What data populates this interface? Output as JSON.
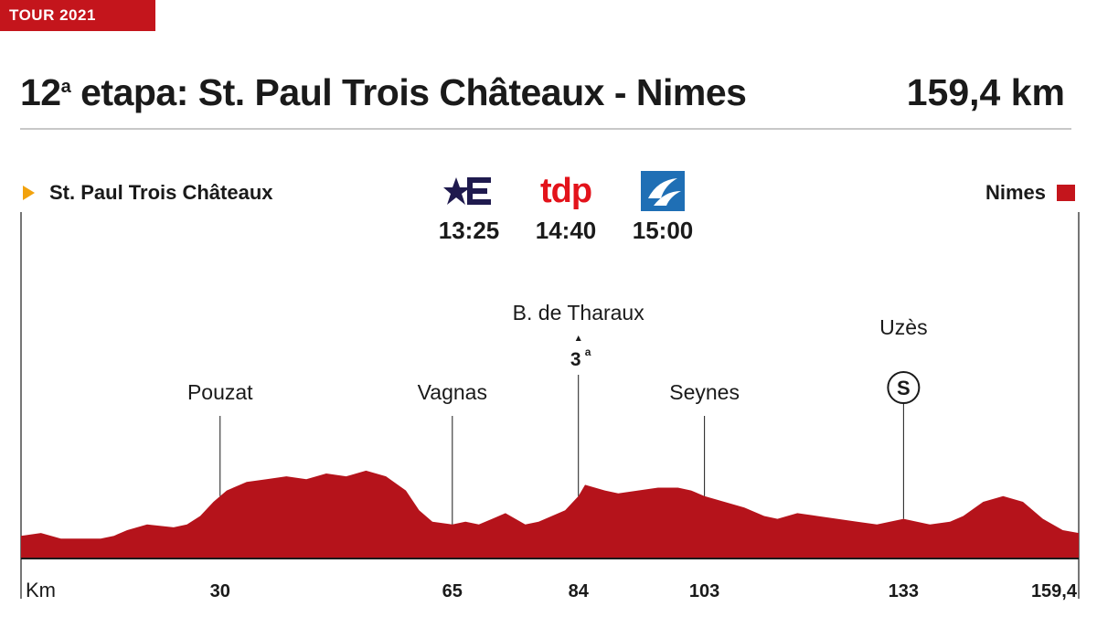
{
  "badge": "TOUR 2021",
  "title": {
    "stage_num": "12",
    "stage_sup": "a",
    "text": " etapa: St. Paul Trois Châteaux - Nimes",
    "distance": "159,4 km"
  },
  "start": {
    "name": "St. Paul Trois Châteaux",
    "marker_color": "#f2a20d"
  },
  "finish": {
    "name": "Nimes",
    "marker_color": "#c4151c"
  },
  "broadcasts": [
    {
      "logo": "eurosport-logo",
      "time": "13:25"
    },
    {
      "logo": "tdp-logo",
      "text": "tdp",
      "time": "14:40"
    },
    {
      "logo": "broadcaster-logo",
      "time": "15:00"
    }
  ],
  "chart_data": {
    "type": "area",
    "title": "",
    "xlabel": "Km",
    "ylabel": "",
    "xlim": [
      0,
      159.4
    ],
    "fill_color": "#b5131b",
    "profile": [
      [
        0,
        8
      ],
      [
        3,
        9
      ],
      [
        6,
        7
      ],
      [
        12,
        7
      ],
      [
        14,
        8
      ],
      [
        16,
        10
      ],
      [
        19,
        12
      ],
      [
        23,
        11
      ],
      [
        25,
        12
      ],
      [
        27,
        15
      ],
      [
        29,
        20
      ],
      [
        31,
        24
      ],
      [
        34,
        27
      ],
      [
        37,
        28
      ],
      [
        40,
        29
      ],
      [
        43,
        28
      ],
      [
        46,
        30
      ],
      [
        49,
        29
      ],
      [
        52,
        31
      ],
      [
        55,
        29
      ],
      [
        58,
        24
      ],
      [
        60,
        17
      ],
      [
        62,
        13
      ],
      [
        65,
        12
      ],
      [
        67,
        13
      ],
      [
        69,
        12
      ],
      [
        71,
        14
      ],
      [
        73,
        16
      ],
      [
        76,
        12
      ],
      [
        78,
        13
      ],
      [
        80,
        15
      ],
      [
        82,
        17
      ],
      [
        84,
        22
      ],
      [
        85,
        26
      ],
      [
        88,
        24
      ],
      [
        90,
        23
      ],
      [
        93,
        24
      ],
      [
        96,
        25
      ],
      [
        99,
        25
      ],
      [
        101,
        24
      ],
      [
        103,
        22
      ],
      [
        106,
        20
      ],
      [
        109,
        18
      ],
      [
        112,
        15
      ],
      [
        114,
        14
      ],
      [
        117,
        16
      ],
      [
        120,
        15
      ],
      [
        123,
        14
      ],
      [
        126,
        13
      ],
      [
        129,
        12
      ],
      [
        133,
        14
      ],
      [
        135,
        13
      ],
      [
        137,
        12
      ],
      [
        140,
        13
      ],
      [
        142,
        15
      ],
      [
        145,
        20
      ],
      [
        148,
        22
      ],
      [
        151,
        20
      ],
      [
        154,
        14
      ],
      [
        157,
        10
      ],
      [
        159.4,
        9
      ]
    ],
    "points": [
      {
        "km": 30,
        "name": "Pouzat"
      },
      {
        "km": 65,
        "name": "Vagnas"
      },
      {
        "km": 84,
        "name": "B. de Tharaux",
        "category": "3",
        "category_sup": "a"
      },
      {
        "km": 103,
        "name": "Seynes"
      },
      {
        "km": 133,
        "name": "Uzès",
        "sprint": "S"
      }
    ],
    "ticks": [
      {
        "km": 30,
        "label": "30"
      },
      {
        "km": 65,
        "label": "65"
      },
      {
        "km": 84,
        "label": "84"
      },
      {
        "km": 103,
        "label": "103"
      },
      {
        "km": 133,
        "label": "133"
      },
      {
        "km": 159.4,
        "label": "159,4"
      }
    ]
  }
}
